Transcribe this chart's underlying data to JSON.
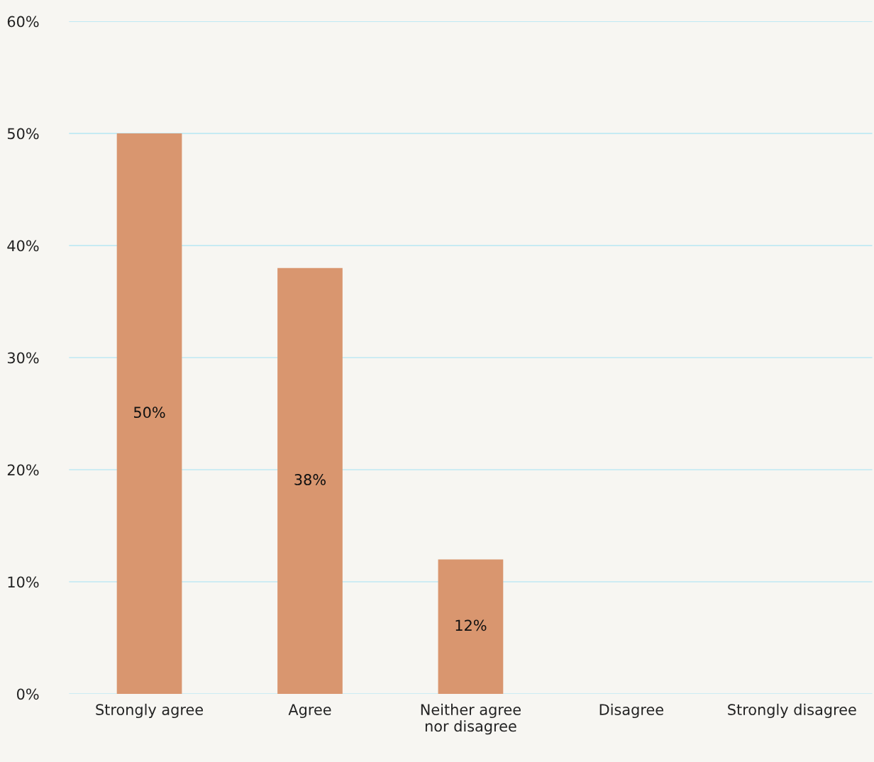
{
  "chart_data": {
    "type": "bar",
    "categories": [
      "Strongly agree",
      "Agree",
      "Neither agree\nnor disagree",
      "Disagree",
      "Strongly disagree"
    ],
    "values": [
      50,
      38,
      12,
      0,
      0
    ],
    "value_labels": [
      "50%",
      "38%",
      "12%",
      null,
      null
    ],
    "color": "#d9966f",
    "ylim": [
      0,
      60
    ],
    "yticks": [
      {
        "value": 0,
        "label": "0%"
      },
      {
        "value": 10,
        "label": "10%"
      },
      {
        "value": 20,
        "label": "20%"
      },
      {
        "value": 30,
        "label": "30%"
      },
      {
        "value": 40,
        "label": "40%"
      },
      {
        "value": 50,
        "label": "50%"
      },
      {
        "value": 60,
        "label": "60%"
      }
    ],
    "grid": "y",
    "legend": false
  }
}
